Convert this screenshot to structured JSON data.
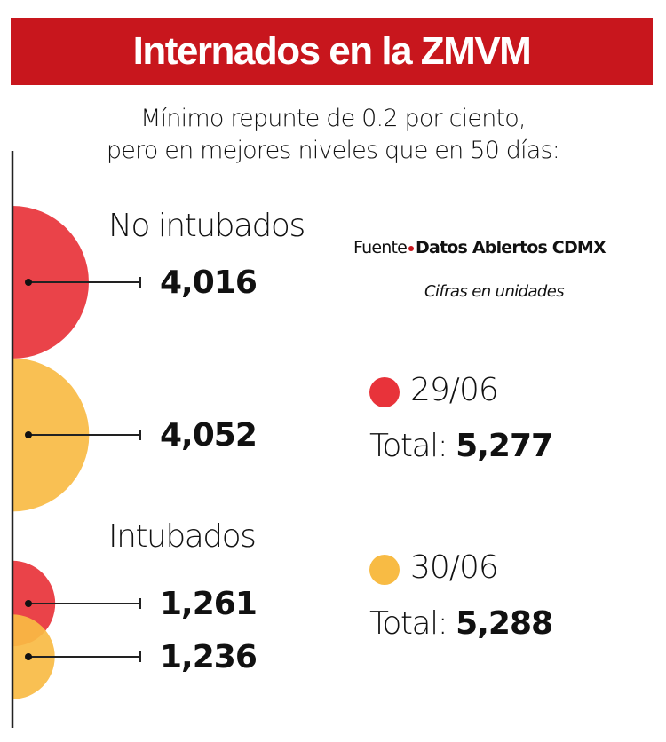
{
  "header": {
    "title": "Internados en la ZMVM"
  },
  "subtitle": [
    "Mínimo repunte de 0.2 por ciento,",
    "pero en mejores niveles que en 50 días:"
  ],
  "source": {
    "label": "Fuente",
    "name": "Datos Ablertos CDMX"
  },
  "units": "Cifras en unidades",
  "colors": {
    "title_bar": "#c8161d",
    "date1": "#e8333a",
    "date2": "#f8bb44"
  },
  "chart_data": {
    "type": "bubble",
    "groups": [
      {
        "label": "No intubados",
        "values": [
          {
            "date": "29/06",
            "value": 4016,
            "text": "4,016"
          },
          {
            "date": "30/06",
            "value": 4052,
            "text": "4,052"
          }
        ]
      },
      {
        "label": "Intubados",
        "values": [
          {
            "date": "29/06",
            "value": 1261,
            "text": "1,261"
          },
          {
            "date": "30/06",
            "value": 1236,
            "text": "1,236"
          }
        ]
      }
    ],
    "legend": [
      {
        "date": "29/06",
        "color": "#e8333a",
        "total_label": "Total:",
        "total": "5,277"
      },
      {
        "date": "30/06",
        "color": "#f8bb44",
        "total_label": "Total:",
        "total": "5,288"
      }
    ]
  }
}
